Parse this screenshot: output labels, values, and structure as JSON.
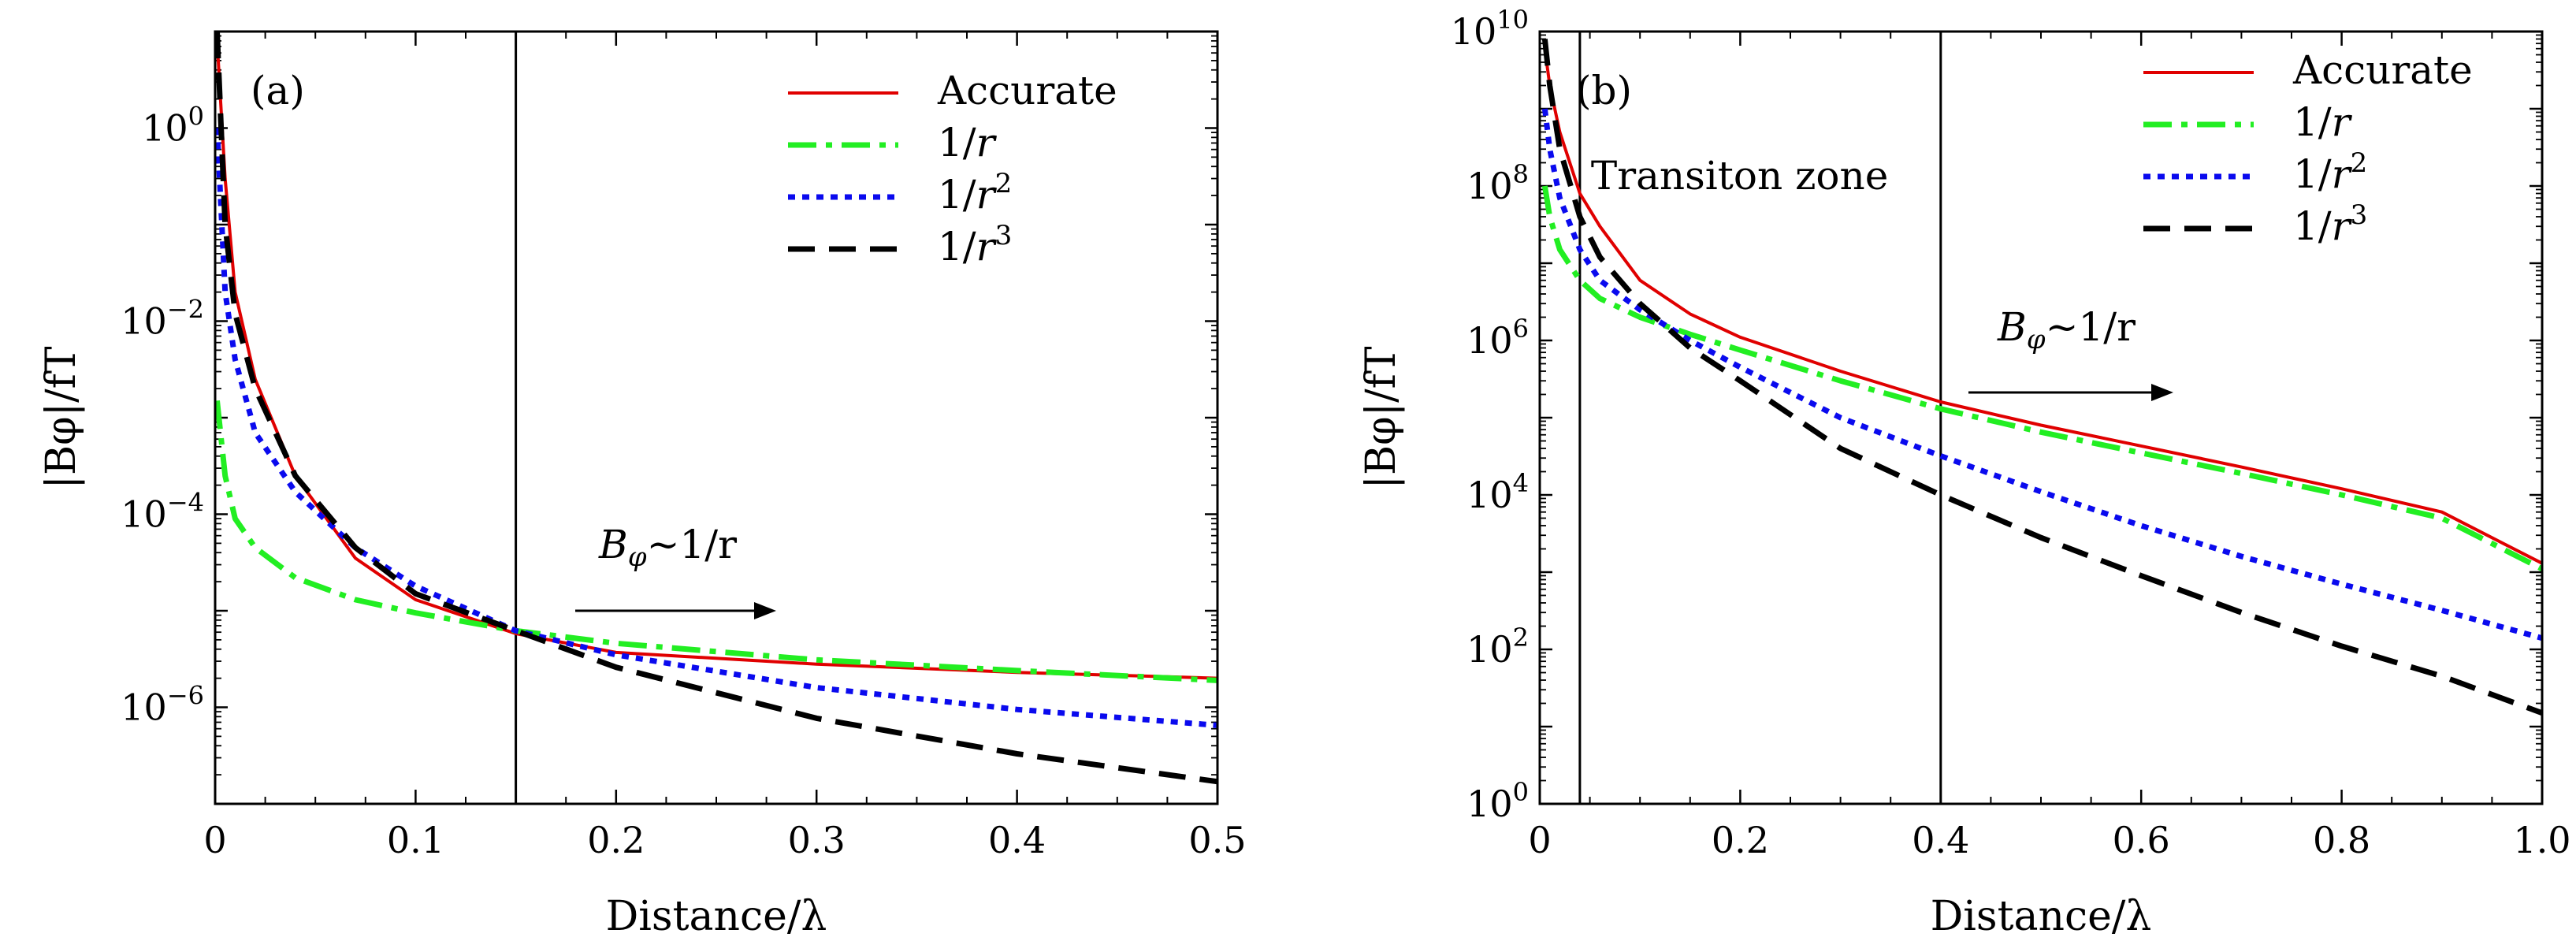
{
  "chart_data": [
    {
      "type": "line",
      "panel_label": "(a)",
      "xlabel": "Distance/λ",
      "ylabel": "|Bφ|/fT",
      "y_scale": "log",
      "xlim": [
        0,
        0.5
      ],
      "ylim": [
        1e-07,
        10.0
      ],
      "x_ticks": [
        0,
        0.1,
        0.2,
        0.3,
        0.4,
        0.5
      ],
      "x_tick_labels": [
        "0",
        "0.1",
        "0.2",
        "0.3",
        "0.4",
        "0.5"
      ],
      "y_tick_labels": [
        {
          "value": 1.0,
          "base": "10",
          "exp": "0"
        },
        {
          "value": 0.01,
          "base": "10",
          "exp": "−2"
        },
        {
          "value": 0.0001,
          "base": "10",
          "exp": "−4"
        },
        {
          "value": 1e-06,
          "base": "10",
          "exp": "−6"
        }
      ],
      "vlines": [
        0.15
      ],
      "legend": "top-right",
      "annotation": {
        "text_main": "B",
        "text_sub": "φ",
        "text_rest": "~1/r",
        "arrow": "right"
      },
      "series": [
        {
          "name": "Accurate",
          "label_plain": "Accurate",
          "color": "#e00000",
          "dash": "solid",
          "x": [
            0.001,
            0.005,
            0.01,
            0.02,
            0.04,
            0.07,
            0.1,
            0.15,
            0.2,
            0.3,
            0.4,
            0.5
          ],
          "y": [
            8.0,
            0.3,
            0.02,
            0.0025,
            0.00025,
            3.5e-05,
            1.3e-05,
            5.8e-06,
            3.7e-06,
            2.8e-06,
            2.3e-06,
            2e-06
          ]
        },
        {
          "name": "1/r",
          "label_plain": "1/",
          "label_italic": "r",
          "label_exp": "",
          "color": "#22ee22",
          "dash": "dashdot",
          "x": [
            0.001,
            0.005,
            0.01,
            0.02,
            0.04,
            0.07,
            0.1,
            0.15,
            0.2,
            0.3,
            0.4,
            0.5
          ],
          "y": [
            0.0015,
            0.00025,
            9e-05,
            4.5e-05,
            2.2e-05,
            1.3e-05,
            9.5e-06,
            6.2e-06,
            4.6e-06,
            3.1e-06,
            2.4e-06,
            1.9e-06
          ]
        },
        {
          "name": "1/r2",
          "label_plain": "1/",
          "label_italic": "r",
          "label_exp": "2",
          "color": "#0a0aee",
          "dash": "dot",
          "x": [
            0.001,
            0.005,
            0.01,
            0.02,
            0.04,
            0.07,
            0.1,
            0.15,
            0.2,
            0.3,
            0.4,
            0.5
          ],
          "y": [
            1.0,
            0.02,
            0.004,
            0.0007,
            0.00017,
            4.5e-05,
            1.8e-05,
            6.2e-06,
            3.5e-06,
            1.6e-06,
            9.5e-07,
            6.5e-07
          ]
        },
        {
          "name": "1/r3",
          "label_plain": "1/",
          "label_italic": "r",
          "label_exp": "3",
          "color": "#000000",
          "dash": "dash",
          "x": [
            0.001,
            0.005,
            0.01,
            0.02,
            0.04,
            0.07,
            0.1,
            0.15,
            0.2,
            0.3,
            0.4,
            0.5
          ],
          "y": [
            10,
            0.1,
            0.012,
            0.002,
            0.00025,
            4.5e-05,
            1.5e-05,
            6.2e-06,
            2.6e-06,
            7.7e-07,
            3.3e-07,
            1.7e-07
          ]
        }
      ]
    },
    {
      "type": "line",
      "panel_label": "(b)",
      "xlabel": "Distance/λ",
      "ylabel": "|Bφ|/fT",
      "y_scale": "log",
      "xlim": [
        0,
        1.0
      ],
      "ylim": [
        1.0,
        10000000000.0
      ],
      "x_ticks": [
        0,
        0.2,
        0.4,
        0.6,
        0.8,
        1.0
      ],
      "x_tick_labels": [
        "0",
        "0.2",
        "0.4",
        "0.6",
        "0.8",
        "1.0"
      ],
      "y_tick_labels": [
        {
          "value": 1.0,
          "base": "10",
          "exp": "0"
        },
        {
          "value": 100.0,
          "base": "10",
          "exp": "2"
        },
        {
          "value": 10000.0,
          "base": "10",
          "exp": "4"
        },
        {
          "value": 1000000.0,
          "base": "10",
          "exp": "6"
        },
        {
          "value": 100000000.0,
          "base": "10",
          "exp": "8"
        },
        {
          "value": 10000000000.0,
          "base": "10",
          "exp": "10"
        }
      ],
      "vlines": [
        0.04,
        0.4
      ],
      "zone_label": "Transiton zone",
      "legend": "top-right",
      "annotation": {
        "text_main": "B",
        "text_sub": "φ",
        "text_rest": "~1/r",
        "arrow": "right"
      },
      "series": [
        {
          "name": "Accurate",
          "label_plain": "Accurate",
          "color": "#e00000",
          "dash": "solid",
          "x": [
            0.005,
            0.01,
            0.02,
            0.04,
            0.06,
            0.1,
            0.15,
            0.2,
            0.3,
            0.4,
            0.5,
            0.6,
            0.7,
            0.8,
            0.9,
            1.0
          ],
          "y": [
            6000000000.0,
            2000000000.0,
            500000000.0,
            80000000.0,
            30000000.0,
            6000000.0,
            2200000.0,
            1100000.0,
            400000.0,
            160000.0,
            80000.0,
            43000.0,
            23000.0,
            12000.0,
            6000.0,
            1300.0
          ]
        },
        {
          "name": "1/r",
          "label_plain": "1/",
          "label_italic": "r",
          "label_exp": "",
          "color": "#22ee22",
          "dash": "dashdot",
          "x": [
            0.005,
            0.01,
            0.02,
            0.04,
            0.06,
            0.1,
            0.15,
            0.2,
            0.3,
            0.4,
            0.5,
            0.6,
            0.7,
            0.8,
            0.9,
            1.0
          ],
          "y": [
            100000000.0,
            40000000.0,
            15000000.0,
            6000000.0,
            3500000.0,
            2000000.0,
            1200000.0,
            750000.0,
            300000.0,
            130000.0,
            65000.0,
            35000.0,
            19000.0,
            10000.0,
            5000.0,
            1100.0
          ]
        },
        {
          "name": "1/r2",
          "label_plain": "1/",
          "label_italic": "r",
          "label_exp": "2",
          "color": "#0a0aee",
          "dash": "dot",
          "x": [
            0.005,
            0.01,
            0.02,
            0.04,
            0.06,
            0.1,
            0.15,
            0.2,
            0.3,
            0.4,
            0.5,
            0.6,
            0.7,
            0.8,
            0.9,
            1.0
          ],
          "y": [
            1000000000.0,
            300000000.0,
            70000000.0,
            15000000.0,
            6000000.0,
            2500000.0,
            1000000.0,
            450000.0,
            100000.0,
            32000.0,
            11000.0,
            4000.0,
            1600.0,
            700,
            320,
            140
          ]
        },
        {
          "name": "1/r3",
          "label_plain": "1/",
          "label_italic": "r",
          "label_exp": "3",
          "color": "#000000",
          "dash": "dash",
          "x": [
            0.005,
            0.01,
            0.02,
            0.04,
            0.06,
            0.1,
            0.15,
            0.2,
            0.3,
            0.4,
            0.5,
            0.6,
            0.7,
            0.8,
            0.9,
            1.0
          ],
          "y": [
            8000000000.0,
            2000000000.0,
            300000000.0,
            40000000.0,
            12000000.0,
            3000000.0,
            800000.0,
            300000.0,
            40000.0,
            10000.0,
            2800.0,
            900,
            300,
            110,
            45,
            15
          ]
        }
      ]
    }
  ]
}
